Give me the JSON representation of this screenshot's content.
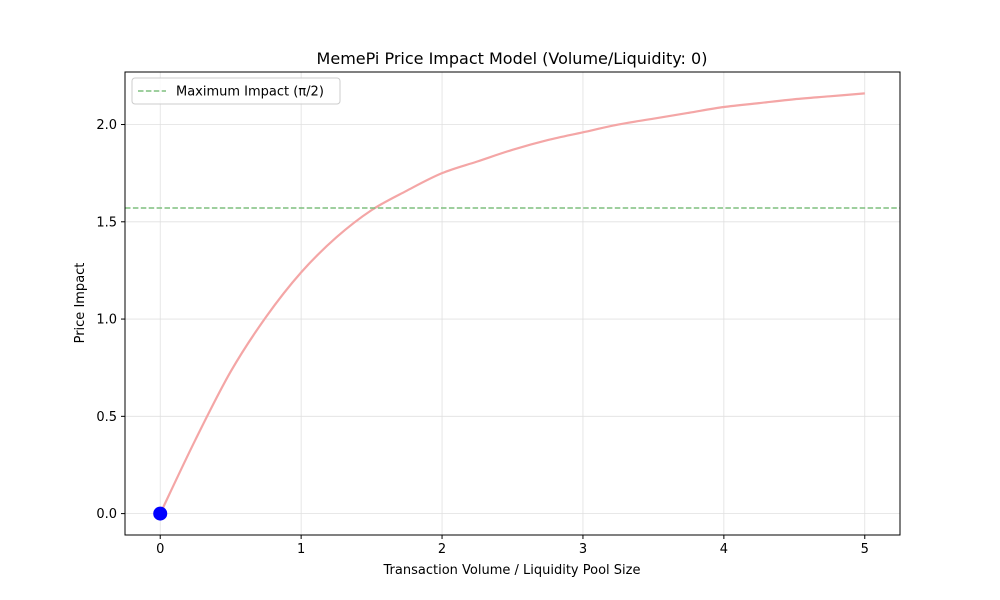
{
  "chart_data": {
    "type": "line",
    "title": "MemePi Price Impact Model (Volume/Liquidity: 0)",
    "xlabel": "Transaction Volume / Liquidity Pool Size",
    "ylabel": "Price Impact",
    "xlim": [
      -0.25,
      5.25
    ],
    "ylim": [
      -0.11,
      2.27
    ],
    "xticks": [
      0,
      1,
      2,
      3,
      4,
      5
    ],
    "xtick_labels": [
      "0",
      "1",
      "2",
      "3",
      "4",
      "5"
    ],
    "yticks": [
      0.0,
      0.5,
      1.0,
      1.5,
      2.0
    ],
    "ytick_labels": [
      "0.0",
      "0.5",
      "1.0",
      "1.5",
      "2.0"
    ],
    "grid": true,
    "legend": {
      "placement": "top-left",
      "entries": [
        "Maximum Impact (π/2)"
      ]
    },
    "series": [
      {
        "kind": "curve",
        "color": "#f4a6a6",
        "x": [
          0,
          0.25,
          0.5,
          0.75,
          1.0,
          1.25,
          1.5,
          1.75,
          2.0,
          2.25,
          2.5,
          2.75,
          3.0,
          3.25,
          3.5,
          3.75,
          4.0,
          4.25,
          4.5,
          4.75,
          5.0
        ],
        "y": [
          0.0,
          0.38,
          0.73,
          1.01,
          1.24,
          1.42,
          1.56,
          1.66,
          1.75,
          1.81,
          1.87,
          1.92,
          1.96,
          2.0,
          2.03,
          2.06,
          2.09,
          2.11,
          2.13,
          2.145,
          2.16
        ]
      },
      {
        "kind": "hline",
        "name": "Maximum Impact (π/2)",
        "y": 1.5708,
        "color": "#7fbf7f",
        "dashed": true
      },
      {
        "kind": "point",
        "x": 0,
        "y": 0,
        "color": "#0000ff"
      }
    ]
  }
}
